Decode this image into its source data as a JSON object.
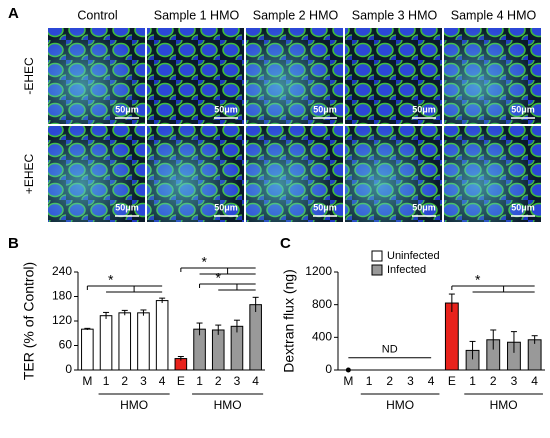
{
  "panel_a": {
    "label": "A",
    "columns": [
      "Control",
      "Sample 1 HMO",
      "Sample 2 HMO",
      "Sample 3 HMO",
      "Sample 4 HMO"
    ],
    "rows": [
      "-EHEC",
      "+EHEC"
    ],
    "scale_bar": "50μm"
  },
  "chart_data": [
    {
      "type": "bar",
      "label": "B",
      "ylabel": "TER (% of Control)",
      "categories": [
        "M",
        "1",
        "2",
        "3",
        "4",
        "E",
        "1",
        "2",
        "3",
        "4"
      ],
      "values": [
        100,
        133,
        140,
        140,
        170,
        28,
        100,
        98,
        107,
        160
      ],
      "errors": [
        2,
        8,
        6,
        7,
        6,
        5,
        15,
        12,
        15,
        18
      ],
      "colors": [
        "#ffffff",
        "#ffffff",
        "#ffffff",
        "#ffffff",
        "#ffffff",
        "#e8221c",
        "#999999",
        "#999999",
        "#999999",
        "#999999"
      ],
      "ylim": [
        0,
        240
      ],
      "yticks": [
        0,
        60,
        120,
        180,
        240
      ],
      "groups": [
        {
          "label": "HMO",
          "from": 1,
          "to": 4
        },
        {
          "label": "HMO",
          "from": 6,
          "to": 9
        }
      ],
      "annotations": [
        "*",
        "*",
        "*"
      ]
    },
    {
      "type": "bar",
      "label": "C",
      "ylabel": "Dextran flux (ng)",
      "categories": [
        "M",
        "1",
        "2",
        "3",
        "4",
        "E",
        "1",
        "2",
        "3",
        "4"
      ],
      "values": [
        0,
        null,
        null,
        null,
        null,
        820,
        240,
        370,
        340,
        370
      ],
      "errors": [
        0,
        null,
        null,
        null,
        null,
        110,
        110,
        120,
        130,
        50
      ],
      "colors": [
        "#ffffff",
        "#ffffff",
        "#ffffff",
        "#ffffff",
        "#ffffff",
        "#e8221c",
        "#999999",
        "#999999",
        "#999999",
        "#999999"
      ],
      "ylim": [
        0,
        1200
      ],
      "yticks": [
        0,
        400,
        800,
        1200
      ],
      "groups": [
        {
          "label": "HMO",
          "from": 1,
          "to": 4
        },
        {
          "label": "HMO",
          "from": 6,
          "to": 9
        }
      ],
      "legend": [
        {
          "name": "Uninfected",
          "color": "#ffffff"
        },
        {
          "name": "Infected",
          "color": "#999999"
        }
      ],
      "annotations": [
        "ND",
        "*"
      ]
    }
  ]
}
